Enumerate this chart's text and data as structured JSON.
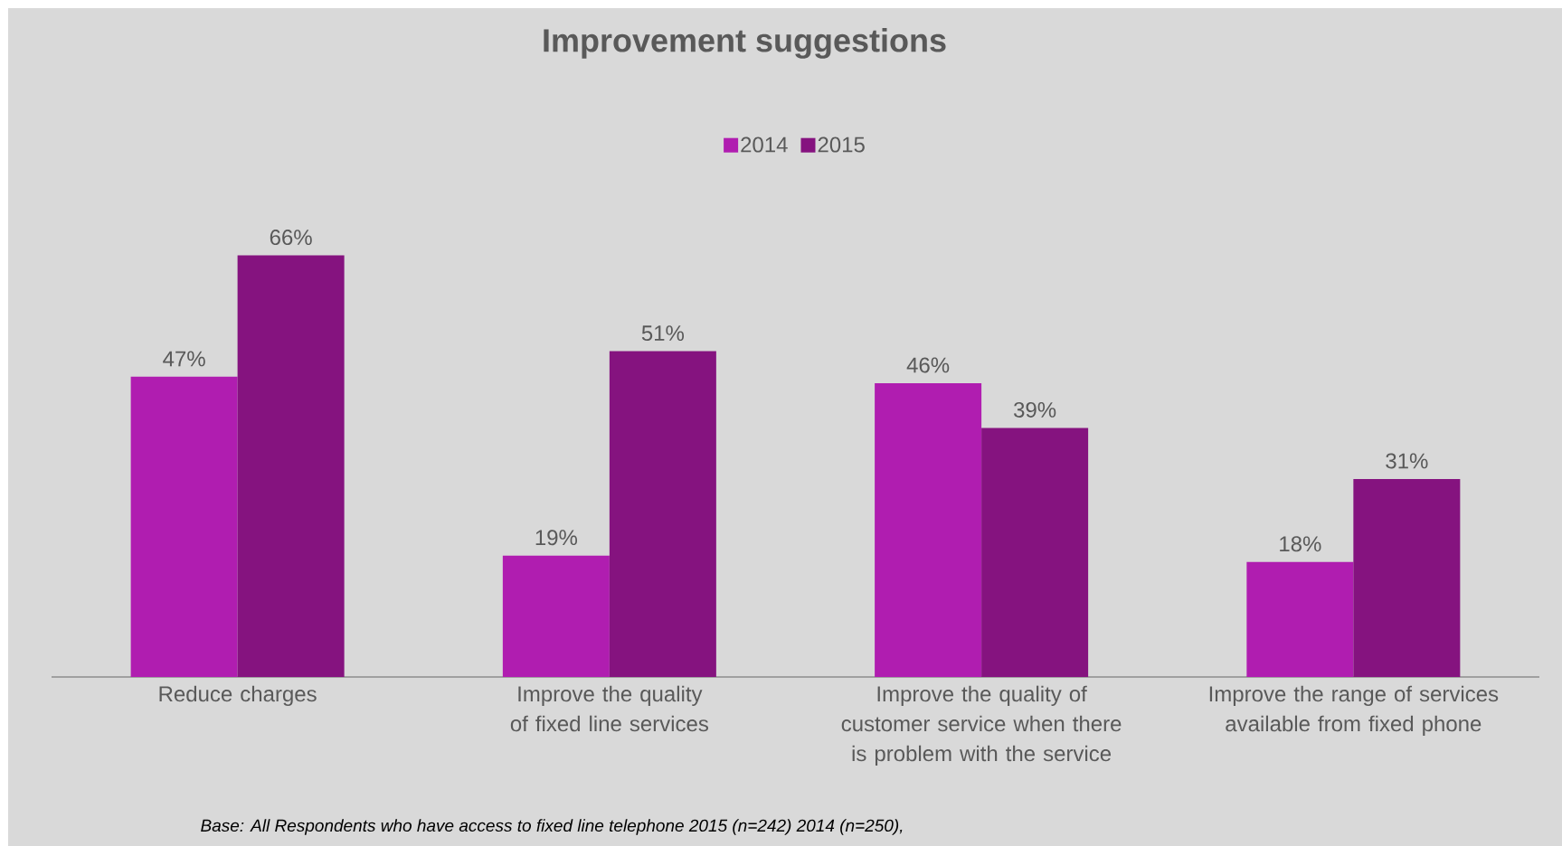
{
  "chart_data": {
    "type": "bar",
    "title": "Improvement suggestions",
    "categories": [
      "Reduce charges",
      "Improve the quality of fixed line services",
      "Improve the quality of customer service when there is problem with the service",
      "Improve the range of services available from fixed phone"
    ],
    "series": [
      {
        "name": "2014",
        "color": "#b01db0",
        "values": [
          47,
          19,
          46,
          18
        ],
        "value_labels": [
          "47%",
          "19%",
          "46%",
          "18%"
        ]
      },
      {
        "name": "2015",
        "color": "#85137f",
        "values": [
          66,
          51,
          39,
          31
        ],
        "value_labels": [
          "66%",
          "51%",
          "39%",
          "31%"
        ]
      }
    ],
    "legend": "top",
    "annotations": [
      "Base: All Respondents who have access to fixed line telephone 2015 (n=242) 2014 (n=250),"
    ]
  }
}
